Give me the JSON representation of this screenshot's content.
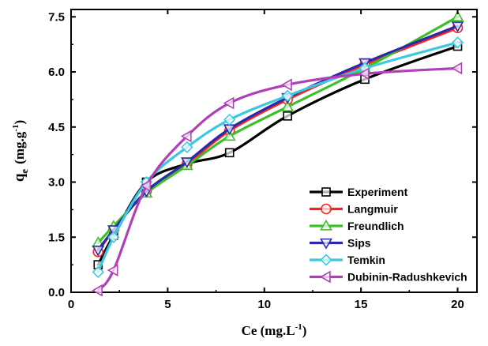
{
  "chart_data": {
    "type": "line",
    "xlabel_base": "Ce (mg.L",
    "xlabel_sup": "-1",
    "xlabel_tail": ")",
    "ylabel_base": "q",
    "ylabel_sub": "e",
    "ylabel_unit_base": "(mg.g",
    "ylabel_unit_sup": "-1",
    "ylabel_unit_tail": ")",
    "xlim": [
      0,
      21
    ],
    "ylim": [
      0,
      7.7
    ],
    "xticks": [
      0,
      5,
      10,
      15,
      20
    ],
    "xtick_labels": [
      "0",
      "5",
      "10",
      "15",
      "20"
    ],
    "yticks": [
      0,
      1.5,
      3.0,
      4.5,
      6.0,
      7.5
    ],
    "ytick_labels": [
      "0.0",
      "1.5",
      "3.0",
      "4.5",
      "6.0",
      "7.5"
    ],
    "grid": false,
    "legend_position": "bottom-right",
    "series": [
      {
        "name": "Experiment",
        "color": "#000000",
        "marker": "square",
        "x": [
          1.4,
          2.2,
          3.9,
          6.0,
          8.2,
          11.2,
          15.2,
          20.0
        ],
        "y": [
          0.75,
          1.55,
          3.0,
          3.5,
          3.8,
          4.8,
          5.8,
          6.7
        ]
      },
      {
        "name": "Langmuir",
        "color": "#ff2020",
        "marker": "circle",
        "x": [
          1.4,
          2.2,
          3.9,
          6.0,
          8.2,
          11.2,
          15.2,
          20.0
        ],
        "y": [
          1.1,
          1.7,
          2.75,
          3.5,
          4.4,
          5.25,
          6.2,
          7.2
        ]
      },
      {
        "name": "Freundlich",
        "color": "#3cbf2a",
        "marker": "triangle-up",
        "x": [
          1.4,
          2.2,
          3.9,
          6.0,
          8.2,
          11.2,
          15.2,
          20.0
        ],
        "y": [
          1.35,
          1.8,
          2.7,
          3.45,
          4.25,
          5.05,
          6.1,
          7.5
        ]
      },
      {
        "name": "Sips",
        "color": "#2a2aa8",
        "marker": "triangle-down",
        "x": [
          1.4,
          2.2,
          3.9,
          6.0,
          8.2,
          11.2,
          15.2,
          20.0
        ],
        "y": [
          1.15,
          1.7,
          2.75,
          3.55,
          4.45,
          5.3,
          6.25,
          7.25
        ]
      },
      {
        "name": "Temkin",
        "color": "#3cc8e0",
        "marker": "diamond",
        "x": [
          1.4,
          2.2,
          3.9,
          6.0,
          8.2,
          11.2,
          15.2,
          20.0
        ],
        "y": [
          0.55,
          1.5,
          3.0,
          3.95,
          4.7,
          5.35,
          6.1,
          6.8
        ]
      },
      {
        "name": "Dubinin-Radushkevich",
        "color": "#b040b8",
        "marker": "triangle-left",
        "x": [
          1.4,
          2.2,
          3.9,
          6.0,
          8.2,
          11.2,
          15.2,
          20.0
        ],
        "y": [
          0.05,
          0.6,
          2.9,
          4.25,
          5.15,
          5.65,
          5.95,
          6.1
        ]
      }
    ]
  }
}
